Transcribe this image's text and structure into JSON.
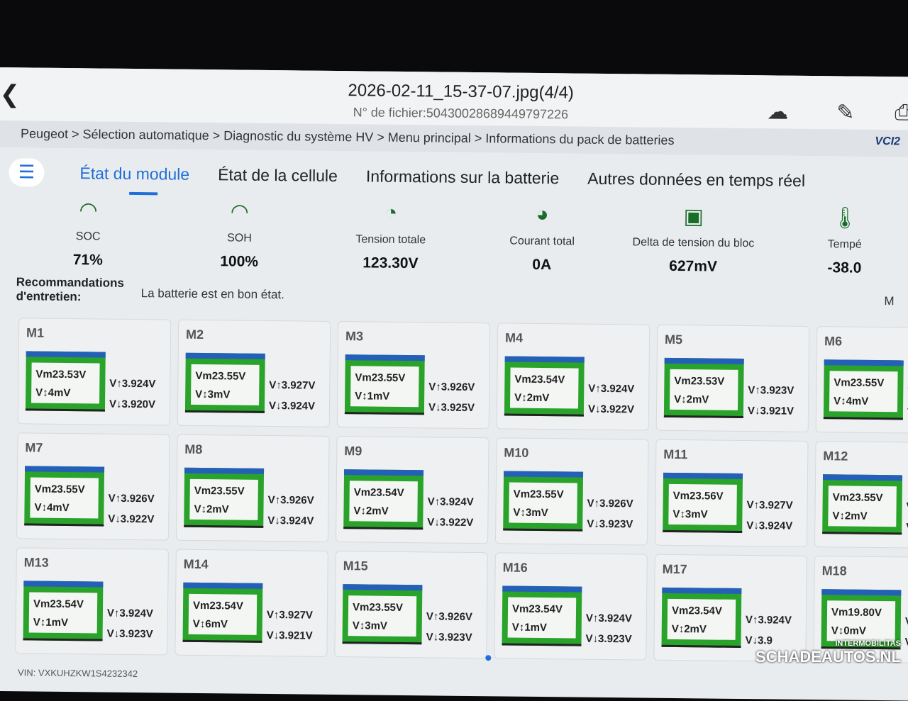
{
  "header": {
    "title": "2026-02-11_15-37-07.jpg(4/4)",
    "file_number": "N° de fichier:50430028689449797226"
  },
  "breadcrumb": "Peugeot > Sélection automatique > Diagnostic du système HV > Menu principal > Informations du pack de batteries",
  "vci": "VCI2",
  "tabs": [
    "État du module",
    "État de la cellule",
    "Informations sur la batterie",
    "Autres données en temps réel"
  ],
  "gauges": [
    {
      "label": "SOC",
      "value": "71%",
      "icon": "gauge-arc-icon"
    },
    {
      "label": "SOH",
      "value": "100%",
      "icon": "gauge-arc-icon"
    },
    {
      "label": "Tension totale",
      "value": "123.30V",
      "icon": "voltmeter-icon"
    },
    {
      "label": "Courant total",
      "value": "0A",
      "icon": "ammeter-icon"
    },
    {
      "label": "Delta de tension du bloc",
      "value": "627mV",
      "icon": "battery-block-icon"
    },
    {
      "label": "Tempé",
      "value": "-38.0",
      "icon": "thermometer-icon"
    }
  ],
  "maintenance": {
    "label": "Recommandations d'entretien:",
    "text": "La batterie est en bon état.",
    "more": "M"
  },
  "modules": [
    {
      "name": "M1",
      "vm": "Vm23.53V",
      "vd": "V↕4mV",
      "vmax": "V↑3.924V",
      "vmin": "V↓3.920V"
    },
    {
      "name": "M2",
      "vm": "Vm23.55V",
      "vd": "V↕3mV",
      "vmax": "V↑3.927V",
      "vmin": "V↓3.924V"
    },
    {
      "name": "M3",
      "vm": "Vm23.55V",
      "vd": "V↕1mV",
      "vmax": "V↑3.926V",
      "vmin": "V↓3.925V"
    },
    {
      "name": "M4",
      "vm": "Vm23.54V",
      "vd": "V↕2mV",
      "vmax": "V↑3.924V",
      "vmin": "V↓3.922V"
    },
    {
      "name": "M5",
      "vm": "Vm23.53V",
      "vd": "V↕2mV",
      "vmax": "V↑3.923V",
      "vmin": "V↓3.921V"
    },
    {
      "name": "M6",
      "vm": "Vm23.55V",
      "vd": "V↕4mV",
      "vmax": "V",
      "vmin": "V"
    },
    {
      "name": "M7",
      "vm": "Vm23.55V",
      "vd": "V↕4mV",
      "vmax": "V↑3.926V",
      "vmin": "V↓3.922V"
    },
    {
      "name": "M8",
      "vm": "Vm23.55V",
      "vd": "V↕2mV",
      "vmax": "V↑3.926V",
      "vmin": "V↓3.924V"
    },
    {
      "name": "M9",
      "vm": "Vm23.54V",
      "vd": "V↕2mV",
      "vmax": "V↑3.924V",
      "vmin": "V↓3.922V"
    },
    {
      "name": "M10",
      "vm": "Vm23.55V",
      "vd": "V↕3mV",
      "vmax": "V↑3.926V",
      "vmin": "V↓3.923V"
    },
    {
      "name": "M11",
      "vm": "Vm23.56V",
      "vd": "V↕3mV",
      "vmax": "V↑3.927V",
      "vmin": "V↓3.924V"
    },
    {
      "name": "M12",
      "vm": "Vm23.55V",
      "vd": "V↕2mV",
      "vmax": "V",
      "vmin": "V"
    },
    {
      "name": "M13",
      "vm": "Vm23.54V",
      "vd": "V↕1mV",
      "vmax": "V↑3.924V",
      "vmin": "V↓3.923V"
    },
    {
      "name": "M14",
      "vm": "Vm23.54V",
      "vd": "V↕6mV",
      "vmax": "V↑3.927V",
      "vmin": "V↓3.921V"
    },
    {
      "name": "M15",
      "vm": "Vm23.55V",
      "vd": "V↕3mV",
      "vmax": "V↑3.926V",
      "vmin": "V↓3.923V"
    },
    {
      "name": "M16",
      "vm": "Vm23.54V",
      "vd": "V↕1mV",
      "vmax": "V↑3.924V",
      "vmin": "V↓3.923V"
    },
    {
      "name": "M17",
      "vm": "Vm23.54V",
      "vd": "V↕2mV",
      "vmax": "V↑3.924V",
      "vmin": "V↓3.9"
    },
    {
      "name": "M18",
      "vm": "Vm19.80V",
      "vd": "V↕0mV",
      "vmax": "V",
      "vmin": "V"
    }
  ],
  "vin": "VIN: VXKUHZKW1S4232342",
  "watermark": {
    "top": "INTERMOBILITAS",
    "main": "SCHADEAUTOS.NL"
  },
  "colors": {
    "accent": "#1e6fd9",
    "battery_green": "#2aa32a",
    "battery_top": "#2560b8"
  }
}
